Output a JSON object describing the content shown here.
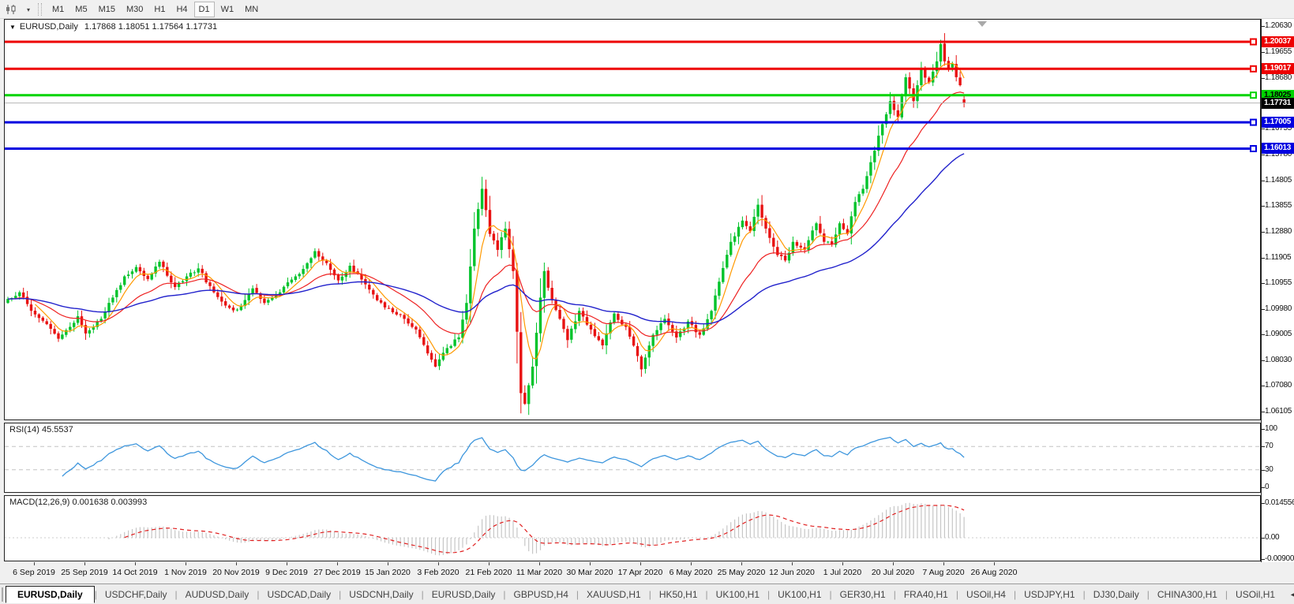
{
  "toolbar": {
    "chart_type_icon": "candlestick-chart-icon",
    "caret": "▾",
    "timeframes": [
      "M1",
      "M5",
      "M15",
      "M30",
      "H1",
      "H4",
      "D1",
      "W1",
      "MN"
    ],
    "active_timeframe": "D1"
  },
  "main_chart": {
    "collapse_arrow": "▼",
    "title": "EURUSD,Daily",
    "quote": "1.17868 1.18051 1.17564 1.17731"
  },
  "rsi_panel": {
    "label": "RSI(14) 45.5537"
  },
  "macd_panel": {
    "label": "MACD(12,26,9) 0.001638 0.003993"
  },
  "price_axis": {
    "ticks": [
      "1.20630",
      "1.19655",
      "1.18680",
      "1.16755",
      "1.15780",
      "1.14805",
      "1.13855",
      "1.12880",
      "1.11905",
      "1.10955",
      "1.09980",
      "1.09005",
      "1.08030",
      "1.07080",
      "1.06105"
    ],
    "line_labels": [
      {
        "price": "1.20037",
        "line_color": "#ee0000",
        "bg": "#ee0000",
        "fg": "#ffffff",
        "thickness": 3,
        "marker": true
      },
      {
        "price": "1.19017",
        "line_color": "#ee0000",
        "bg": "#ee0000",
        "fg": "#ffffff",
        "thickness": 3,
        "marker": true
      },
      {
        "price": "1.18025",
        "line_color": "#00d400",
        "bg": "#00d400",
        "fg": "#000000",
        "thickness": 3,
        "marker": true
      },
      {
        "price": "1.17731",
        "line_color": "#b4b4b4",
        "bg": "#000000",
        "fg": "#ffffff",
        "thickness": 1,
        "marker": false
      },
      {
        "price": "1.17005",
        "line_color": "#0000e0",
        "bg": "#0000e0",
        "fg": "#ffffff",
        "thickness": 3,
        "marker": true
      },
      {
        "price": "1.16013",
        "line_color": "#0000e0",
        "bg": "#0000e0",
        "fg": "#ffffff",
        "thickness": 3,
        "marker": true
      }
    ]
  },
  "date_axis": {
    "labels": [
      "6 Sep 2019",
      "25 Sep 2019",
      "14 Oct 2019",
      "1 Nov 2019",
      "20 Nov 2019",
      "9 Dec 2019",
      "27 Dec 2019",
      "15 Jan 2020",
      "3 Feb 2020",
      "21 Feb 2020",
      "11 Mar 2020",
      "30 Mar 2020",
      "17 Apr 2020",
      "6 May 2020",
      "25 May 2020",
      "12 Jun 2020",
      "1 Jul 2020",
      "20 Jul 2020",
      "7 Aug 2020",
      "26 Aug 2020"
    ]
  },
  "tabs": {
    "items": [
      {
        "label": "EURUSD,Daily",
        "active": true
      },
      {
        "label": "USDCHF,Daily",
        "active": false
      },
      {
        "label": "AUDUSD,Daily",
        "active": false
      },
      {
        "label": "USDCAD,Daily",
        "active": false
      },
      {
        "label": "USDCNH,Daily",
        "active": false
      },
      {
        "label": "EURUSD,Daily",
        "active": false
      },
      {
        "label": "GBPUSD,H4",
        "active": false
      },
      {
        "label": "XAUUSD,H1",
        "active": false
      },
      {
        "label": "HK50,H1",
        "active": false
      },
      {
        "label": "UK100,H1",
        "active": false
      },
      {
        "label": "UK100,H1",
        "active": false
      },
      {
        "label": "GER30,H1",
        "active": false
      },
      {
        "label": "FRA40,H1",
        "active": false
      },
      {
        "label": "USOil,H4",
        "active": false
      },
      {
        "label": "USDJPY,H1",
        "active": false
      },
      {
        "label": "DJ30,Daily",
        "active": false
      },
      {
        "label": "CHINA300,H1",
        "active": false
      },
      {
        "label": "USOil,H1",
        "active": false
      }
    ],
    "scroll_left": "◄",
    "scroll_right": "►"
  },
  "chart_data": [
    {
      "type": "candlestick",
      "symbol": "EURUSD",
      "timeframe": "Daily",
      "last_ohlc": {
        "open": 1.17868,
        "high": 1.18051,
        "low": 1.17564,
        "close": 1.17731
      },
      "y_range": [
        1.0581,
        1.209
      ],
      "y_ticks": [
        1.2063,
        1.19655,
        1.1868,
        1.16755,
        1.1578,
        1.14805,
        1.13855,
        1.1288,
        1.11905,
        1.10955,
        1.0998,
        1.09005,
        1.0803,
        1.0708,
        1.06105
      ],
      "num_candles": 247,
      "close_anchors": [
        [
          0,
          1.1035
        ],
        [
          3,
          1.106
        ],
        [
          6,
          1.099
        ],
        [
          10,
          1.094
        ],
        [
          13,
          1.0885
        ],
        [
          16,
          1.093
        ],
        [
          18,
          1.097
        ],
        [
          20,
          1.0905
        ],
        [
          24,
          1.096
        ],
        [
          27,
          1.104
        ],
        [
          30,
          1.112
        ],
        [
          33,
          1.1155
        ],
        [
          36,
          1.111
        ],
        [
          39,
          1.1175
        ],
        [
          43,
          1.108
        ],
        [
          46,
          1.112
        ],
        [
          49,
          1.115
        ],
        [
          53,
          1.106
        ],
        [
          56,
          1.101
        ],
        [
          59,
          1.0995
        ],
        [
          63,
          1.1075
        ],
        [
          66,
          1.102
        ],
        [
          70,
          1.106
        ],
        [
          74,
          1.112
        ],
        [
          77,
          1.117
        ],
        [
          79,
          1.1215
        ],
        [
          82,
          1.117
        ],
        [
          85,
          1.1105
        ],
        [
          88,
          1.116
        ],
        [
          92,
          1.109
        ],
        [
          95,
          1.103
        ],
        [
          98,
          1.1
        ],
        [
          102,
          1.096
        ],
        [
          105,
          1.092
        ],
        [
          108,
          1.083
        ],
        [
          110,
          1.078
        ],
        [
          113,
          1.085
        ],
        [
          116,
          1.089
        ],
        [
          118,
          1.102
        ],
        [
          120,
          1.13
        ],
        [
          122,
          1.145
        ],
        [
          124,
          1.128
        ],
        [
          126,
          1.122
        ],
        [
          128,
          1.13
        ],
        [
          130,
          1.114
        ],
        [
          132,
          1.068
        ],
        [
          133,
          1.064
        ],
        [
          135,
          1.078
        ],
        [
          137,
          1.104
        ],
        [
          138,
          1.114
        ],
        [
          140,
          1.103
        ],
        [
          142,
          1.096
        ],
        [
          144,
          1.088
        ],
        [
          147,
          1.099
        ],
        [
          150,
          1.092
        ],
        [
          153,
          1.086
        ],
        [
          156,
          1.098
        ],
        [
          159,
          1.093
        ],
        [
          162,
          1.082
        ],
        [
          163,
          1.077
        ],
        [
          166,
          1.09
        ],
        [
          169,
          1.096
        ],
        [
          172,
          1.089
        ],
        [
          175,
          1.095
        ],
        [
          178,
          1.09
        ],
        [
          181,
          1.099
        ],
        [
          183,
          1.11
        ],
        [
          186,
          1.125
        ],
        [
          189,
          1.133
        ],
        [
          191,
          1.129
        ],
        [
          193,
          1.139
        ],
        [
          195,
          1.13
        ],
        [
          198,
          1.12
        ],
        [
          200,
          1.118
        ],
        [
          202,
          1.125
        ],
        [
          205,
          1.122
        ],
        [
          208,
          1.132
        ],
        [
          210,
          1.125
        ],
        [
          212,
          1.124
        ],
        [
          214,
          1.132
        ],
        [
          216,
          1.128
        ],
        [
          218,
          1.14
        ],
        [
          220,
          1.145
        ],
        [
          222,
          1.155
        ],
        [
          224,
          1.165
        ],
        [
          227,
          1.178
        ],
        [
          229,
          1.172
        ],
        [
          231,
          1.187
        ],
        [
          233,
          1.178
        ],
        [
          235,
          1.19
        ],
        [
          237,
          1.185
        ],
        [
          239,
          1.193
        ],
        [
          240,
          1.1995
        ],
        [
          241,
          1.193
        ],
        [
          242,
          1.1905
        ],
        [
          243,
          1.192
        ],
        [
          244,
          1.187
        ],
        [
          245,
          1.184
        ],
        [
          246,
          1.17731
        ]
      ],
      "overrides": {
        "110": {
          "low": 1.0778
        },
        "122": {
          "high": 1.1495
        },
        "133": {
          "low": 1.0636
        },
        "239": {
          "high": 1.1966
        },
        "240": {
          "high": 1.2011
        },
        "246": {
          "open": 1.17868,
          "high": 1.18051,
          "low": 1.17564,
          "close": 1.17731
        }
      },
      "horizontal_lines": [
        {
          "price": 1.20037,
          "color": "#ee0000"
        },
        {
          "price": 1.19017,
          "color": "#ee0000"
        },
        {
          "price": 1.18025,
          "color": "#00d400"
        },
        {
          "price": 1.17005,
          "color": "#0000e0"
        },
        {
          "price": 1.16013,
          "color": "#0000e0"
        }
      ],
      "current_price": 1.17731,
      "moving_averages": [
        {
          "method": "lwma",
          "period": 8,
          "color": "#ff9900"
        },
        {
          "method": "ema",
          "period": 20,
          "color": "#ee2222"
        },
        {
          "method": "ema",
          "period": 55,
          "color": "#2222cc"
        }
      ],
      "up_color": "#00c32b",
      "up_edge": "#009422",
      "down_color": "#e81212",
      "down_edge": "#b00000"
    },
    {
      "type": "line",
      "name": "RSI",
      "period": 14,
      "current_value": 45.5537,
      "range": [
        0,
        100
      ],
      "axis_labels": [
        100,
        70,
        30,
        0
      ],
      "levels": [
        70,
        30
      ],
      "color": "#3d96dd",
      "level_color": "#c4c4c4"
    },
    {
      "type": "histogram+line",
      "name": "MACD",
      "params": [
        12,
        26,
        9
      ],
      "current_macd": 0.001638,
      "current_signal": 0.003993,
      "range": [
        -0.009001,
        0.014556
      ],
      "axis_labels": [
        "0.014556",
        "0.00",
        "-0.009001"
      ],
      "axis_values": [
        0.014556,
        0,
        -0.009001
      ],
      "hist_color": "#c6c6c6",
      "signal_color": "#e02020"
    }
  ]
}
